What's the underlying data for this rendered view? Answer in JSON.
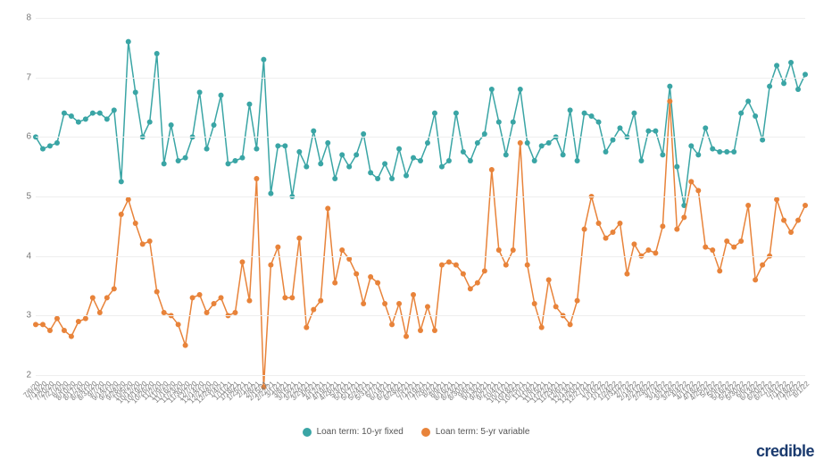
{
  "chart": {
    "type": "line",
    "ylim": [
      2,
      8
    ],
    "ytick_step": 1,
    "yticks": [
      2,
      3,
      4,
      5,
      6,
      7,
      8
    ],
    "background_color": "#ffffff",
    "grid_color": "#eeeeee",
    "axis_text_color": "#777777",
    "axis_fontsize": 10,
    "xlabel_fontsize": 8,
    "line_width": 1.5,
    "marker_radius": 3,
    "marker_style": "circle",
    "dates": [
      "7/6/20",
      "7/13/20",
      "7/20/20",
      "7/27/20",
      "8/3/20",
      "8/10/20",
      "8/17/20",
      "8/24/20",
      "8/31/20",
      "9/7/20",
      "9/14/20",
      "9/21/20",
      "9/28/20",
      "10/5/20",
      "10/12/20",
      "10/19/20",
      "10/26/20",
      "11/2/20",
      "11/9/20",
      "11/16/20",
      "11/23/20",
      "11/30/20",
      "12/7/20",
      "12/14/20",
      "12/21/20",
      "12/28/20",
      "1/4/21",
      "1/11/21",
      "1/18/21",
      "1/25/21",
      "2/1/21",
      "2/8/21",
      "2/15/21",
      "2/22/21",
      "3/1/21",
      "3/8/21",
      "3/15/21",
      "3/22/21",
      "3/29/21",
      "4/5/21",
      "4/12/21",
      "4/19/21",
      "4/26/21",
      "5/3/21",
      "5/10/21",
      "5/17/21",
      "5/24/21",
      "5/31/21",
      "6/7/21",
      "6/14/21",
      "6/21/21",
      "6/28/21",
      "7/5/21",
      "7/12/21",
      "7/19/21",
      "7/26/21",
      "8/2/21",
      "8/9/21",
      "8/16/21",
      "8/23/21",
      "8/30/21",
      "9/6/21",
      "9/13/21",
      "9/20/21",
      "9/27/21",
      "10/4/21",
      "10/11/21",
      "10/18/21",
      "10/25/21",
      "11/1/21",
      "11/8/21",
      "11/15/21",
      "11/22/21",
      "11/29/21",
      "12/6/21",
      "12/13/21",
      "12/20/21",
      "12/27/21",
      "1/3/22",
      "1/10/22",
      "1/17/22",
      "1/24/22",
      "1/31/22",
      "2/7/22",
      "2/14/22",
      "2/21/22",
      "2/28/22",
      "3/7/22",
      "3/14/22",
      "3/21/22",
      "3/28/22",
      "4/4/22",
      "4/11/22",
      "4/18/22",
      "4/25/22",
      "5/2/22",
      "5/9/22",
      "5/16/22",
      "5/23/22",
      "5/30/22",
      "6/6/22",
      "6/13/22",
      "6/20/22",
      "6/27/22",
      "7/4/22",
      "7/11/22",
      "7/18/22",
      "7/25/22",
      "8/1/22"
    ],
    "series": [
      {
        "name": "Loan term: 10-yr fixed",
        "color": "#3aa5a5",
        "values": [
          6.0,
          5.8,
          5.85,
          5.9,
          6.4,
          6.35,
          6.25,
          6.3,
          6.4,
          6.4,
          6.3,
          6.45,
          5.25,
          7.6,
          6.75,
          6.0,
          6.25,
          7.4,
          5.55,
          6.2,
          5.6,
          5.65,
          6.0,
          6.75,
          5.8,
          6.2,
          6.7,
          5.55,
          5.6,
          5.65,
          6.55,
          5.8,
          7.3,
          5.05,
          5.85,
          5.85,
          5.0,
          5.75,
          5.5,
          6.1,
          5.55,
          5.9,
          5.3,
          5.7,
          5.5,
          5.7,
          6.05,
          5.4,
          5.3,
          5.55,
          5.3,
          5.8,
          5.35,
          5.65,
          5.6,
          5.9,
          6.4,
          5.5,
          5.6,
          6.4,
          5.75,
          5.6,
          5.9,
          6.05,
          6.8,
          6.25,
          5.7,
          6.25,
          6.8,
          5.9,
          5.6,
          5.85,
          5.9,
          6.0,
          5.7,
          6.45,
          5.6,
          6.4,
          6.35,
          6.25,
          5.75,
          5.95,
          6.15,
          6.0,
          6.4,
          5.6,
          6.1,
          6.1,
          5.7,
          6.85,
          5.5,
          4.85,
          5.85,
          5.7,
          6.15,
          5.8,
          5.75,
          5.75,
          5.75,
          6.4,
          6.6,
          6.35,
          5.95,
          6.85,
          7.2,
          6.9,
          7.25,
          6.8,
          7.05
        ]
      },
      {
        "name": "Loan term: 5-yr variable",
        "color": "#e8833a",
        "values": [
          2.85,
          2.85,
          2.75,
          2.95,
          2.75,
          2.65,
          2.9,
          2.95,
          3.3,
          3.05,
          3.3,
          3.45,
          4.7,
          4.95,
          4.55,
          4.2,
          4.25,
          3.4,
          3.05,
          3.0,
          2.85,
          2.5,
          3.3,
          3.35,
          3.05,
          3.2,
          3.3,
          3.0,
          3.05,
          3.9,
          3.25,
          5.3,
          1.8,
          3.85,
          4.15,
          3.3,
          3.3,
          4.3,
          2.8,
          3.1,
          3.25,
          4.8,
          3.55,
          4.1,
          3.95,
          3.7,
          3.2,
          3.65,
          3.55,
          3.2,
          2.85,
          3.2,
          2.65,
          3.35,
          2.75,
          3.15,
          2.75,
          3.85,
          3.9,
          3.85,
          3.7,
          3.45,
          3.55,
          3.75,
          5.45,
          4.1,
          3.85,
          4.1,
          5.9,
          3.85,
          3.2,
          2.8,
          3.6,
          3.15,
          3.0,
          2.85,
          3.25,
          4.45,
          5.0,
          4.55,
          4.3,
          4.4,
          4.55,
          3.7,
          4.2,
          4.0,
          4.1,
          4.05,
          4.5,
          6.6,
          4.45,
          4.65,
          5.25,
          5.1,
          4.15,
          4.1,
          3.75,
          4.25,
          4.15,
          4.25,
          4.85,
          3.6,
          3.85,
          4.0,
          4.95,
          4.6,
          4.4,
          4.6,
          4.85
        ]
      }
    ]
  },
  "legend": {
    "fontsize": 10,
    "text_color": "#555555",
    "position": "bottom-center"
  },
  "branding": {
    "logo_text": "credible",
    "logo_color": "#1a3a6e",
    "position": "bottom-right"
  }
}
